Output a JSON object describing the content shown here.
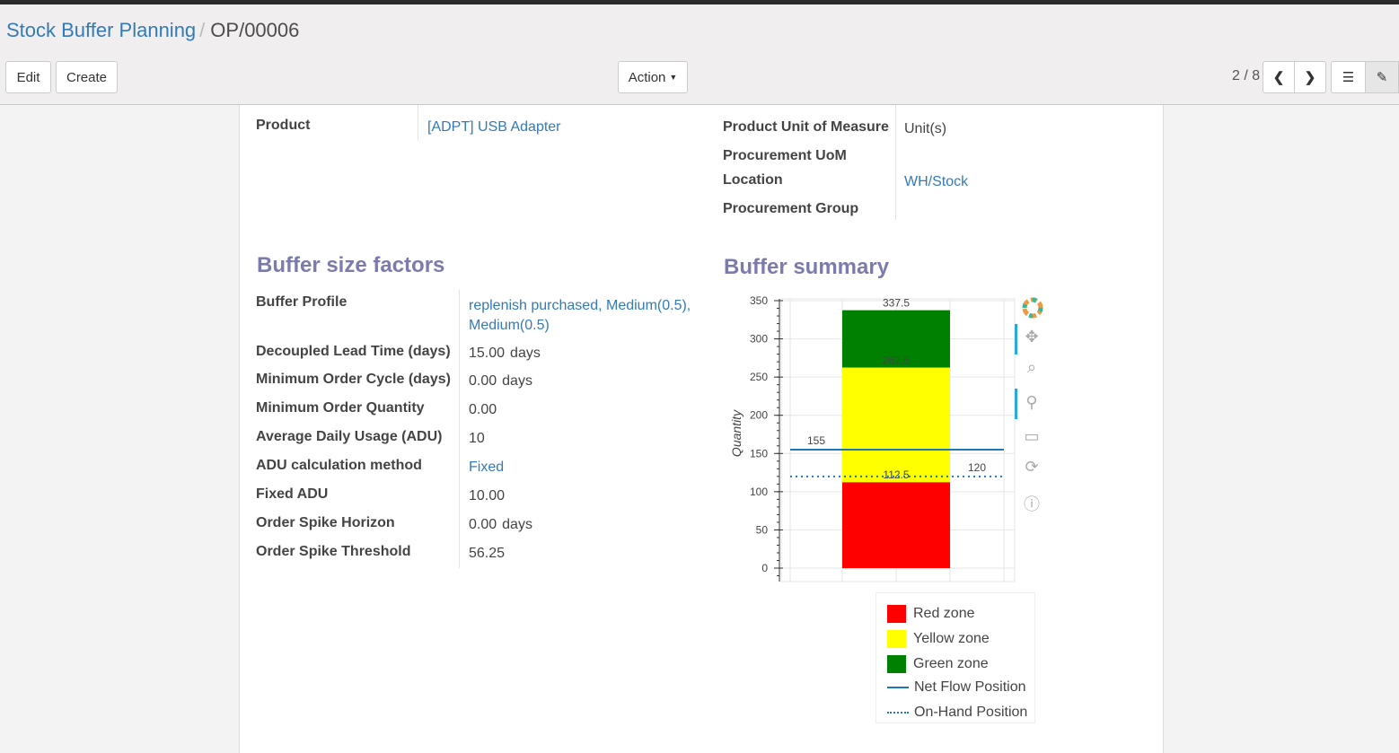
{
  "breadcrumb": {
    "parent": "Stock Buffer Planning",
    "current": "OP/00006"
  },
  "toolbar": {
    "edit": "Edit",
    "create": "Create",
    "action": "Action",
    "pager": "2 / 8"
  },
  "product": {
    "label": "Product",
    "value": "[ADPT] USB Adapter"
  },
  "right_fields": [
    {
      "label": "Product Unit of Measure",
      "value": "Unit(s)"
    },
    {
      "label": "Procurement UoM",
      "value": ""
    },
    {
      "label": "Location",
      "value": "WH/Stock"
    },
    {
      "label": "Procurement Group",
      "value": ""
    }
  ],
  "factors": {
    "title": "Buffer size factors",
    "rows": [
      {
        "label": "Buffer Profile",
        "value": "replenish purchased, Medium(0.5), Medium(0.5)"
      },
      {
        "label": "Decoupled Lead Time (days)",
        "value": "15.00",
        "unit": "days"
      },
      {
        "label": "Minimum Order Cycle (days)",
        "value": "0.00",
        "unit": "days"
      },
      {
        "label": "Minimum Order Quantity",
        "value": "0.00"
      },
      {
        "label": "Average Daily Usage (ADU)",
        "value": "10"
      },
      {
        "label": "ADU calculation method",
        "value": "Fixed"
      },
      {
        "label": "Fixed ADU",
        "value": "10.00"
      },
      {
        "label": "Order Spike Horizon",
        "value": "0.00",
        "unit": "days"
      },
      {
        "label": "Order Spike Threshold",
        "value": "56.25"
      }
    ]
  },
  "summary": {
    "title": "Buffer summary"
  },
  "chart_data": {
    "type": "bar",
    "ylabel": "Quantity",
    "ylim": [
      -18,
      352
    ],
    "yticks": [
      0,
      50,
      100,
      150,
      200,
      250,
      300,
      350
    ],
    "stack": [
      {
        "name": "Red zone",
        "from": 0,
        "to": 112.5,
        "color": "#ff0000"
      },
      {
        "name": "Yellow zone",
        "from": 112.5,
        "to": 262.5,
        "color": "#ffff00"
      },
      {
        "name": "Green zone",
        "from": 262.5,
        "to": 337.5,
        "color": "#008000"
      }
    ],
    "bar_labels": [
      "112.5",
      "262.5",
      "337.5"
    ],
    "lines": [
      {
        "name": "Net Flow Position",
        "value": 155,
        "label": "155",
        "style": "solid",
        "color": "#1f77b4"
      },
      {
        "name": "On-Hand Position",
        "value": 120,
        "label": "120",
        "style": "dotted",
        "color": "#1f77b4"
      }
    ],
    "legend": [
      "Red zone",
      "Yellow zone",
      "Green zone",
      "Net Flow Position",
      "On-Hand Position"
    ],
    "grid": true,
    "legend_position": "bottom"
  }
}
